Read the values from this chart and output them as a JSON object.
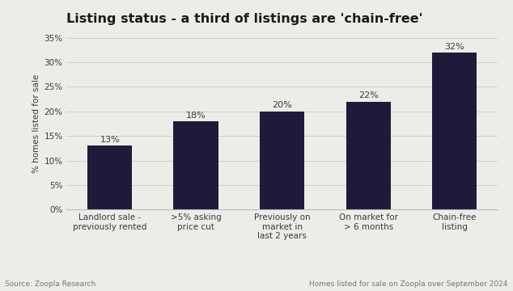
{
  "title": "Listing status - a third of listings are 'chain-free'",
  "categories": [
    "Landlord sale -\npreviously rented",
    ">5% asking\nprice cut",
    "Previously on\nmarket in\nlast 2 years",
    "On market for\n> 6 months",
    "Chain-free\nlisting"
  ],
  "values": [
    13,
    18,
    20,
    22,
    32
  ],
  "labels": [
    "13%",
    "18%",
    "20%",
    "22%",
    "32%"
  ],
  "bar_color": "#1e1b3a",
  "background_color": "#eeece8",
  "ylabel": "% homes listed for sale",
  "ylim": [
    0,
    35
  ],
  "yticks": [
    0,
    5,
    10,
    15,
    20,
    25,
    30,
    35
  ],
  "ytick_labels": [
    "0%",
    "5%",
    "10%",
    "15%",
    "20%",
    "25%",
    "30%",
    "35%"
  ],
  "title_fontsize": 11.5,
  "bar_label_fontsize": 8,
  "axis_fontsize": 7.5,
  "ylabel_fontsize": 7.5,
  "source_left": "Source: Zoopla Research",
  "source_right": "Homes listed for sale on Zoopla over September 2024",
  "source_fontsize": 6.5,
  "grid_color": "#d0cec8",
  "text_color": "#3a3a3a",
  "source_color": "#777777"
}
